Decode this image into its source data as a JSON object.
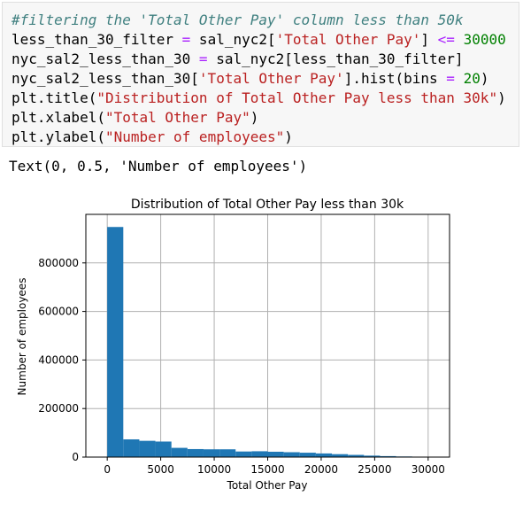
{
  "code": {
    "line1": "#filtering the 'Total Other Pay' column less than 50k",
    "line2": {
      "a": "less_than_30_filter ",
      "op": "=",
      "b": " sal_nyc2[",
      "s": "'Total Other Pay'",
      "c": "] ",
      "op2": "<=",
      "d": " ",
      "n": "30000"
    },
    "line3": {
      "a": "nyc_sal2_less_than_30 ",
      "op": "=",
      "b": " sal_nyc2[less_than_30_filter]"
    },
    "line4": {
      "a": "nyc_sal2_less_than_30[",
      "s": "'Total Other Pay'",
      "b": "].hist(bins ",
      "op": "=",
      "c": " ",
      "n": "20",
      "d": ")"
    },
    "line5": {
      "a": "plt.title(",
      "s": "\"Distribution of Total Other Pay less than 30k\"",
      "b": ")"
    },
    "line6": {
      "a": "plt.xlabel(",
      "s": "\"Total Other Pay\"",
      "b": ")"
    },
    "line7": {
      "a": "plt.ylabel(",
      "s": "\"Number of employees\"",
      "b": ")"
    }
  },
  "output_text": "Text(0, 0.5, 'Number of employees')",
  "chart_data": {
    "type": "bar",
    "title": "Distribution of Total Other Pay less than 30k",
    "xlabel": "Total Other Pay",
    "ylabel": "Number of employees",
    "xlim": [
      -2000,
      32000
    ],
    "ylim": [
      0,
      1000000
    ],
    "xticks": [
      0,
      5000,
      10000,
      15000,
      20000,
      25000,
      30000
    ],
    "yticks": [
      0,
      200000,
      400000,
      600000,
      800000
    ],
    "grid": true,
    "color": "#1f77b4",
    "bins": [
      {
        "x0": 0,
        "x1": 1500,
        "value": 948000
      },
      {
        "x0": 1500,
        "x1": 3000,
        "value": 73000
      },
      {
        "x0": 3000,
        "x1": 4500,
        "value": 67000
      },
      {
        "x0": 4500,
        "x1": 6000,
        "value": 64000
      },
      {
        "x0": 6000,
        "x1": 7500,
        "value": 38000
      },
      {
        "x0": 7500,
        "x1": 9000,
        "value": 33000
      },
      {
        "x0": 9000,
        "x1": 10500,
        "value": 32000
      },
      {
        "x0": 10500,
        "x1": 12000,
        "value": 32000
      },
      {
        "x0": 12000,
        "x1": 13500,
        "value": 23000
      },
      {
        "x0": 13500,
        "x1": 15000,
        "value": 24000
      },
      {
        "x0": 15000,
        "x1": 16500,
        "value": 22000
      },
      {
        "x0": 16500,
        "x1": 18000,
        "value": 20000
      },
      {
        "x0": 18000,
        "x1": 19500,
        "value": 18000
      },
      {
        "x0": 19500,
        "x1": 21000,
        "value": 15000
      },
      {
        "x0": 21000,
        "x1": 22500,
        "value": 12000
      },
      {
        "x0": 22500,
        "x1": 24000,
        "value": 9000
      },
      {
        "x0": 24000,
        "x1": 25500,
        "value": 6000
      },
      {
        "x0": 25500,
        "x1": 27000,
        "value": 4000
      },
      {
        "x0": 27000,
        "x1": 28500,
        "value": 2500
      },
      {
        "x0": 28500,
        "x1": 30000,
        "value": 1500
      }
    ]
  }
}
